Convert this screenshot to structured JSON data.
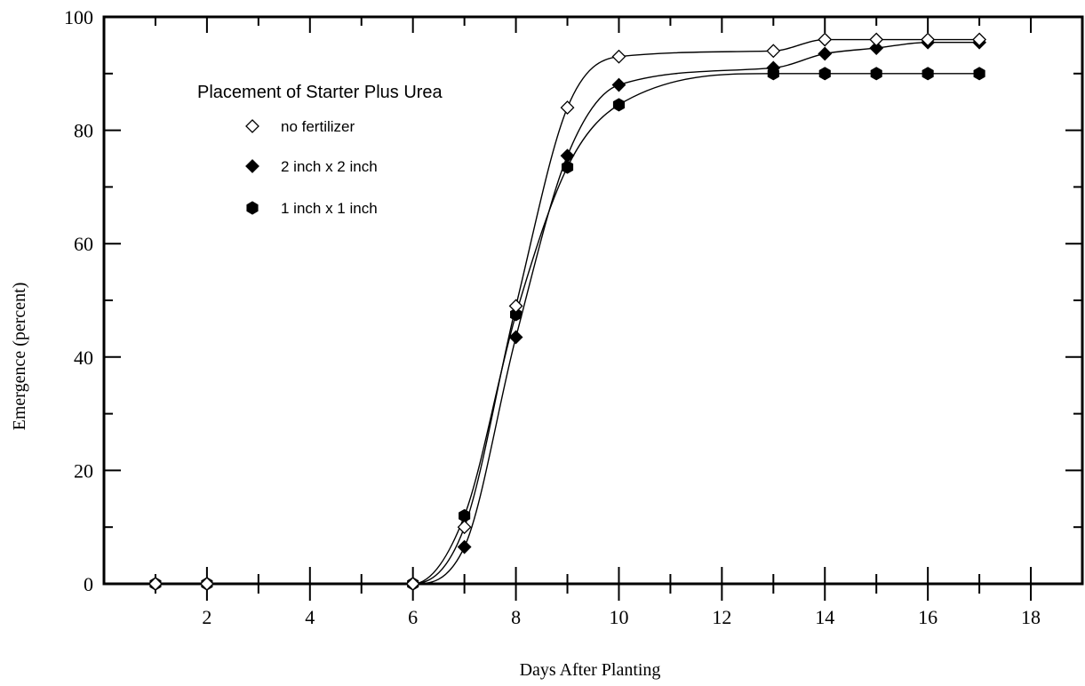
{
  "chart_data": {
    "type": "line",
    "xlabel": "Days After Planting",
    "ylabel": "Emergence (percent)",
    "xlim": [
      0,
      19
    ],
    "ylim": [
      0,
      100
    ],
    "x_ticks": [
      2,
      4,
      6,
      8,
      10,
      12,
      14,
      16,
      18
    ],
    "y_ticks": [
      0,
      20,
      40,
      60,
      80,
      100
    ],
    "grid": false,
    "legend": {
      "title": "Placement of Starter Plus Urea",
      "position": "top-left"
    },
    "x": [
      1,
      2,
      6,
      7,
      8,
      9,
      10,
      13,
      14,
      15,
      16,
      17
    ],
    "series": [
      {
        "name": "no fertilizer",
        "marker": "diamond-open",
        "values": [
          0,
          0,
          0,
          10,
          49,
          84,
          93,
          94,
          96,
          96,
          96,
          96
        ]
      },
      {
        "name": "2 inch x 2 inch",
        "marker": "diamond-filled",
        "values": [
          0,
          0,
          0,
          6.5,
          43.5,
          75.5,
          88,
          91,
          93.5,
          94.5,
          95.5,
          95.5
        ]
      },
      {
        "name": "1 inch x 1 inch",
        "marker": "hexagon-filled",
        "values": [
          0,
          0,
          0,
          12,
          47.5,
          73.5,
          84.5,
          90,
          90,
          90,
          90,
          90
        ]
      }
    ]
  }
}
